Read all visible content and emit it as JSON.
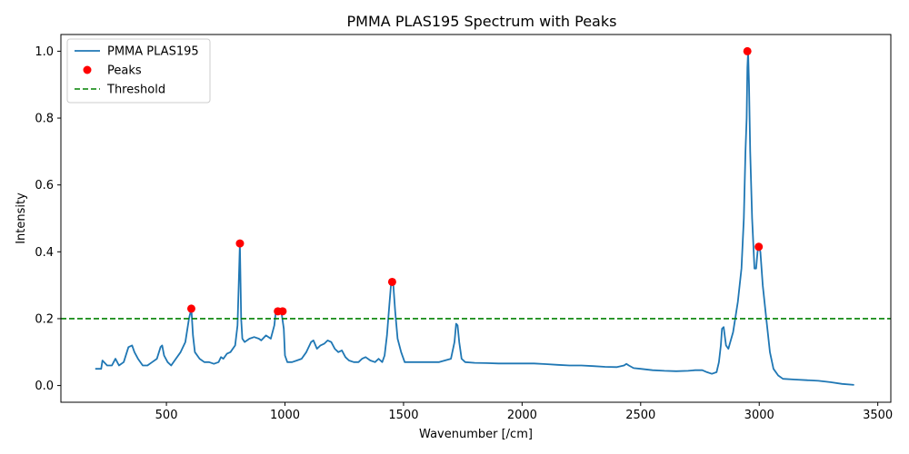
{
  "chart_data": {
    "type": "line",
    "title": "PMMA PLAS195 Spectrum with Peaks",
    "xlabel": "Wavenumber [/cm]",
    "ylabel": "Intensity",
    "xlim": [
      55,
      3555
    ],
    "ylim": [
      -0.05,
      1.05
    ],
    "xticks": [
      500,
      1000,
      1500,
      2000,
      2500,
      3000,
      3500
    ],
    "yticks": [
      0.0,
      0.2,
      0.4,
      0.6,
      0.8,
      1.0
    ],
    "grid": false,
    "legend_position": "top-left",
    "colors": {
      "spectrum": "#1f77b4",
      "peaks": "#ff0000",
      "threshold": "#008000"
    },
    "legend": [
      {
        "label": "PMMA PLAS195",
        "kind": "line"
      },
      {
        "label": "Peaks",
        "kind": "marker"
      },
      {
        "label": "Threshold",
        "kind": "dashed"
      }
    ],
    "threshold": 0.2,
    "series": [
      {
        "name": "PMMA PLAS195",
        "x": [
          200,
          225,
          230,
          250,
          270,
          285,
          300,
          320,
          340,
          355,
          365,
          380,
          400,
          420,
          440,
          460,
          475,
          482,
          490,
          505,
          520,
          540,
          560,
          580,
          595,
          605,
          612,
          620,
          640,
          660,
          680,
          700,
          720,
          730,
          740,
          755,
          770,
          790,
          800,
          805,
          810,
          815,
          820,
          830,
          850,
          870,
          890,
          900,
          920,
          940,
          955,
          962,
          967,
          972,
          977,
          982,
          987,
          995,
          1000,
          1010,
          1030,
          1050,
          1070,
          1090,
          1110,
          1120,
          1135,
          1150,
          1165,
          1180,
          1195,
          1210,
          1225,
          1240,
          1255,
          1270,
          1290,
          1310,
          1325,
          1340,
          1360,
          1380,
          1395,
          1410,
          1420,
          1430,
          1440,
          1447,
          1452,
          1457,
          1465,
          1475,
          1490,
          1505,
          1530,
          1560,
          1600,
          1650,
          1700,
          1715,
          1722,
          1728,
          1735,
          1745,
          1760,
          1800,
          1850,
          1900,
          1950,
          2000,
          2050,
          2100,
          2150,
          2200,
          2250,
          2300,
          2350,
          2400,
          2430,
          2440,
          2450,
          2470,
          2500,
          2550,
          2600,
          2650,
          2700,
          2730,
          2760,
          2780,
          2800,
          2820,
          2830,
          2838,
          2843,
          2850,
          2860,
          2870,
          2890,
          2910,
          2925,
          2935,
          2942,
          2947,
          2950,
          2953,
          2957,
          2962,
          2970,
          2980,
          2987,
          2993,
          2998,
          3005,
          3015,
          3030,
          3045,
          3060,
          3080,
          3100,
          3150,
          3200,
          3250,
          3300,
          3350,
          3400
        ],
        "y": [
          0.05,
          0.05,
          0.075,
          0.06,
          0.06,
          0.08,
          0.06,
          0.07,
          0.115,
          0.12,
          0.1,
          0.08,
          0.06,
          0.06,
          0.07,
          0.08,
          0.115,
          0.12,
          0.09,
          0.07,
          0.06,
          0.08,
          0.1,
          0.13,
          0.2,
          0.23,
          0.15,
          0.1,
          0.08,
          0.07,
          0.07,
          0.065,
          0.07,
          0.085,
          0.08,
          0.095,
          0.1,
          0.12,
          0.18,
          0.3,
          0.425,
          0.2,
          0.14,
          0.13,
          0.14,
          0.145,
          0.14,
          0.135,
          0.15,
          0.14,
          0.18,
          0.225,
          0.22,
          0.215,
          0.22,
          0.225,
          0.21,
          0.17,
          0.09,
          0.07,
          0.07,
          0.075,
          0.08,
          0.1,
          0.13,
          0.135,
          0.11,
          0.12,
          0.125,
          0.135,
          0.13,
          0.11,
          0.1,
          0.105,
          0.085,
          0.075,
          0.07,
          0.07,
          0.08,
          0.085,
          0.075,
          0.07,
          0.08,
          0.07,
          0.09,
          0.15,
          0.24,
          0.3,
          0.31,
          0.3,
          0.22,
          0.14,
          0.1,
          0.07,
          0.07,
          0.07,
          0.07,
          0.07,
          0.08,
          0.13,
          0.185,
          0.18,
          0.13,
          0.08,
          0.07,
          0.068,
          0.067,
          0.066,
          0.066,
          0.066,
          0.066,
          0.064,
          0.062,
          0.06,
          0.06,
          0.058,
          0.056,
          0.055,
          0.06,
          0.065,
          0.06,
          0.052,
          0.05,
          0.046,
          0.044,
          0.043,
          0.044,
          0.046,
          0.046,
          0.04,
          0.035,
          0.04,
          0.07,
          0.12,
          0.17,
          0.175,
          0.12,
          0.11,
          0.16,
          0.25,
          0.35,
          0.5,
          0.7,
          0.8,
          0.95,
          1.0,
          0.9,
          0.7,
          0.5,
          0.35,
          0.35,
          0.4,
          0.415,
          0.4,
          0.3,
          0.2,
          0.1,
          0.05,
          0.03,
          0.02,
          0.018,
          0.016,
          0.014,
          0.01,
          0.005,
          0.002
        ]
      },
      {
        "name": "Peaks",
        "x": [
          605,
          810,
          970,
          990,
          1452,
          2950,
          2998
        ],
        "y": [
          0.23,
          0.425,
          0.222,
          0.222,
          0.31,
          1.0,
          0.415
        ]
      }
    ]
  }
}
